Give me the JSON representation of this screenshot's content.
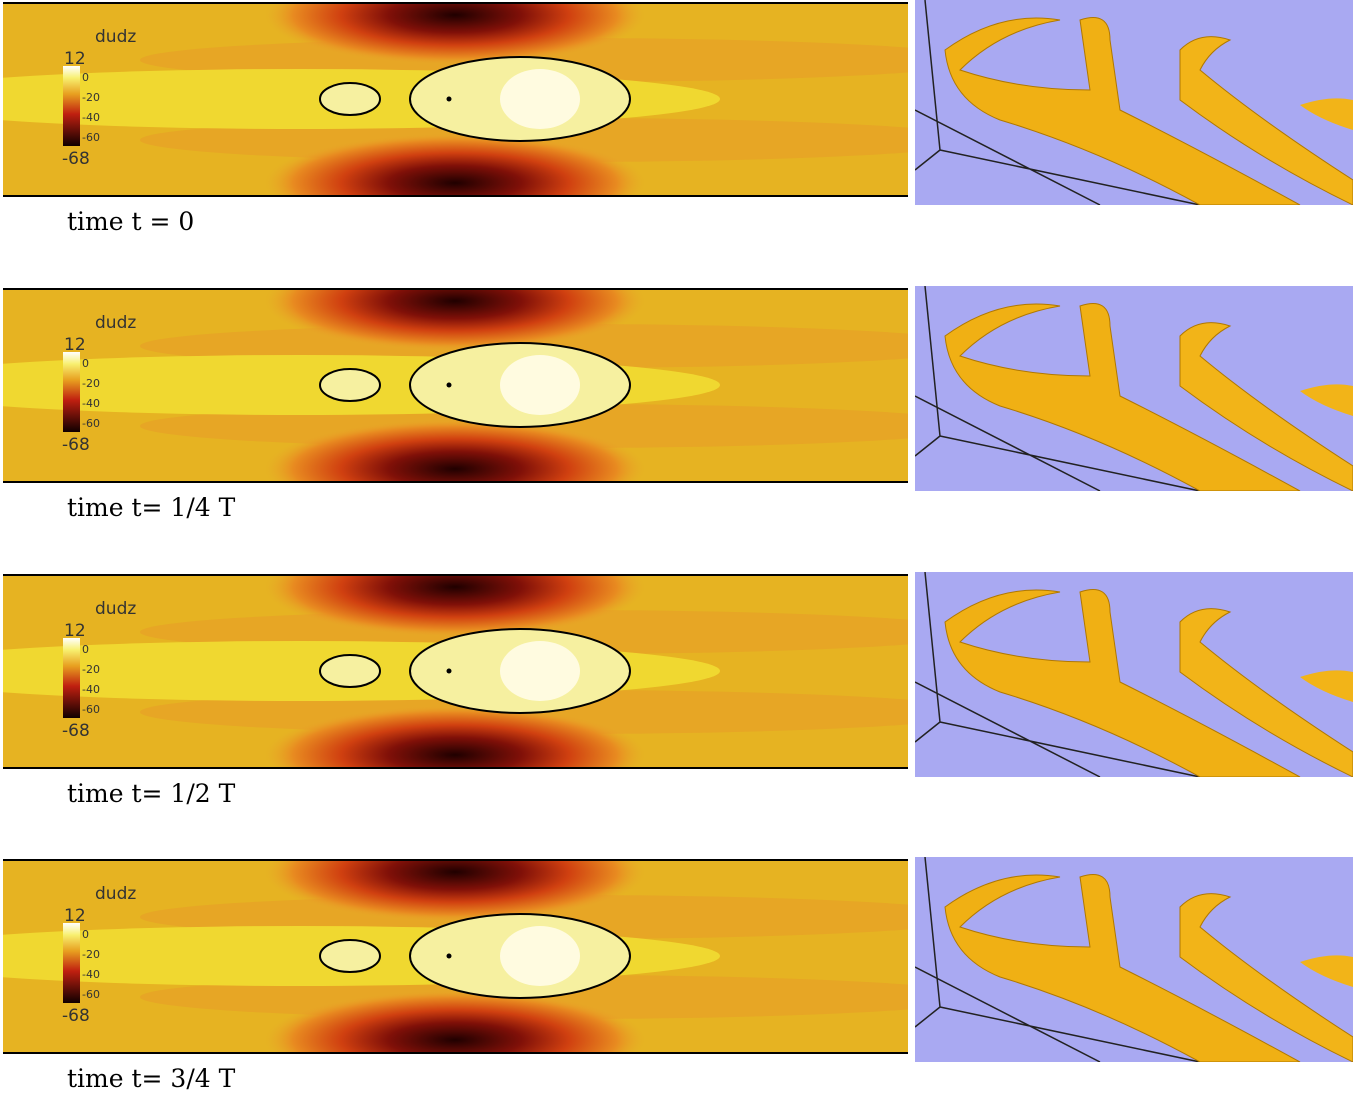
{
  "panels": [
    {
      "caption": "time t = 0",
      "colorbar": {
        "title": "dudz",
        "max": "12",
        "min": "-68",
        "ticks": [
          "0",
          "-20",
          "-40",
          "-60"
        ]
      }
    },
    {
      "caption": "time t= 1/4 T",
      "colorbar": {
        "title": "dudz",
        "max": "12",
        "min": "-68",
        "ticks": [
          "0",
          "-20",
          "-40",
          "-60"
        ]
      }
    },
    {
      "caption": "time t= 1/2 T",
      "colorbar": {
        "title": "dudz",
        "max": "12",
        "min": "-68",
        "ticks": [
          "0",
          "-20",
          "-40",
          "-60"
        ]
      }
    },
    {
      "caption": "time t= 3/4 T",
      "colorbar": {
        "title": "dudz",
        "max": "12",
        "min": "-68",
        "ticks": [
          "0",
          "-20",
          "-40",
          "-60"
        ]
      }
    }
  ]
}
